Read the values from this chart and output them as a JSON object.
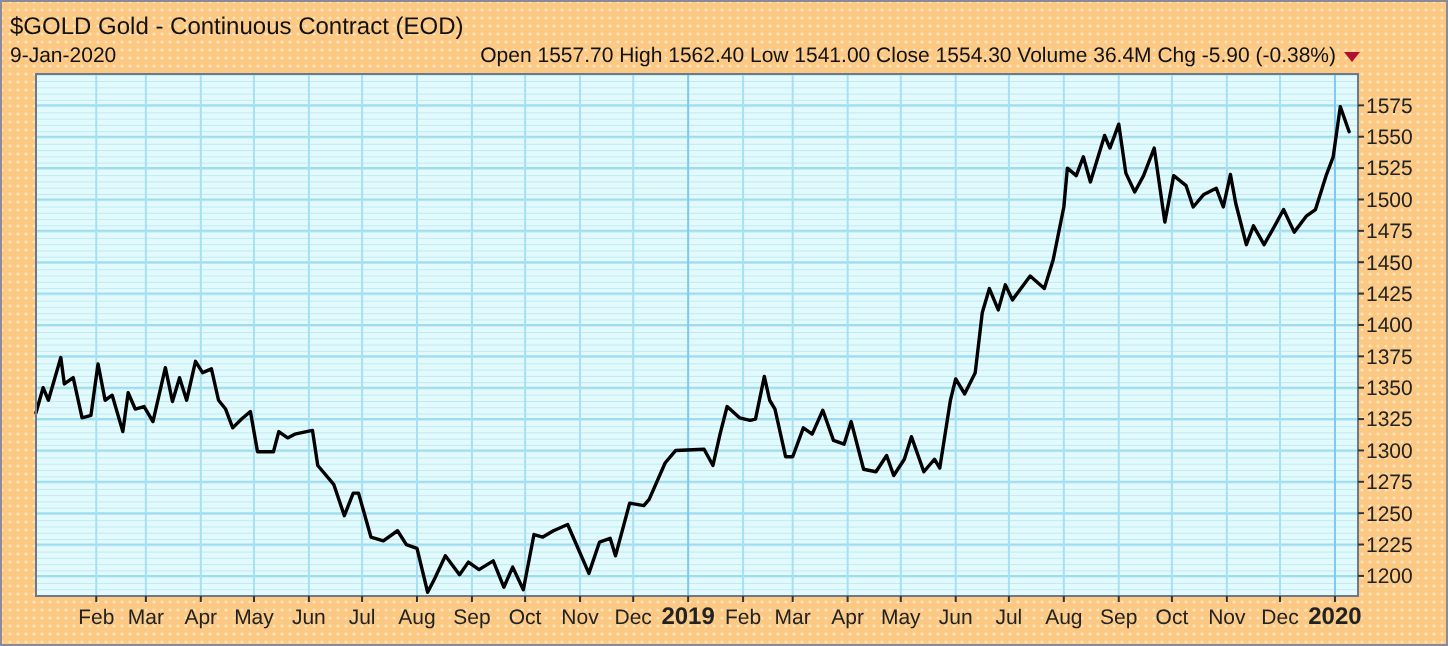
{
  "chart_data": {
    "type": "line",
    "title": "$GOLD Gold - Continuous Contract (EOD)",
    "subtitle": "9-Jan-2020",
    "annotations": [
      "Open 1557.70 High 1562.40 Low 1541.00 Close 1554.30 Volume 36.4M Chg -5.90 (-0.38%)"
    ],
    "x": [
      "2017-12-29",
      "2018-01-02",
      "2018-01-05",
      "2018-01-12",
      "2018-01-14",
      "2018-01-19",
      "2018-01-24",
      "2018-01-29",
      "2018-02-02",
      "2018-02-06",
      "2018-02-10",
      "2018-02-16",
      "2018-02-19",
      "2018-02-23",
      "2018-02-28",
      "2018-03-05",
      "2018-03-12",
      "2018-03-16",
      "2018-03-20",
      "2018-03-24",
      "2018-03-29",
      "2018-04-02",
      "2018-04-07",
      "2018-04-11",
      "2018-04-15",
      "2018-04-19",
      "2018-04-24",
      "2018-04-29",
      "2018-05-03",
      "2018-05-12",
      "2018-05-15",
      "2018-05-20",
      "2018-05-24",
      "2018-06-03",
      "2018-06-06",
      "2018-06-15",
      "2018-06-21",
      "2018-06-26",
      "2018-06-29",
      "2018-07-06",
      "2018-07-13",
      "2018-07-21",
      "2018-07-26",
      "2018-08-01",
      "2018-08-07",
      "2018-08-11",
      "2018-08-17",
      "2018-08-25",
      "2018-08-30",
      "2018-09-05",
      "2018-09-13",
      "2018-09-19",
      "2018-09-24",
      "2018-09-30",
      "2018-10-06",
      "2018-10-11",
      "2018-10-17",
      "2018-10-25",
      "2018-10-29",
      "2018-11-06",
      "2018-11-12",
      "2018-11-18",
      "2018-11-21",
      "2018-11-29",
      "2018-12-07",
      "2018-12-10",
      "2018-12-19",
      "2018-12-25",
      "2019-01-10",
      "2019-01-15",
      "2019-01-19",
      "2019-01-23",
      "2019-01-30",
      "2019-02-05",
      "2019-02-08",
      "2019-02-13",
      "2019-02-16",
      "2019-02-19",
      "2019-02-25",
      "2019-03-01",
      "2019-03-07",
      "2019-03-12",
      "2019-03-18",
      "2019-03-24",
      "2019-03-30",
      "2019-04-03",
      "2019-04-10",
      "2019-04-17",
      "2019-04-23",
      "2019-04-27",
      "2019-05-03",
      "2019-05-07",
      "2019-05-14",
      "2019-05-20",
      "2019-05-23",
      "2019-05-29",
      "2019-06-01",
      "2019-06-06",
      "2019-06-12",
      "2019-06-16",
      "2019-06-20",
      "2019-06-25",
      "2019-06-29",
      "2019-07-03",
      "2019-07-13",
      "2019-07-21",
      "2019-07-26",
      "2019-08-01",
      "2019-08-03",
      "2019-08-08",
      "2019-08-12",
      "2019-08-16",
      "2019-08-24",
      "2019-08-27",
      "2019-09-01",
      "2019-09-05",
      "2019-09-10",
      "2019-09-15",
      "2019-09-21",
      "2019-09-27",
      "2019-10-02",
      "2019-10-09",
      "2019-10-13",
      "2019-10-19",
      "2019-10-26",
      "2019-10-30",
      "2019-11-03",
      "2019-11-06",
      "2019-11-12",
      "2019-11-16",
      "2019-11-22",
      "2019-11-28",
      "2019-12-03",
      "2019-12-09",
      "2019-12-16",
      "2019-12-21",
      "2019-12-27",
      "2019-12-31",
      "2020-01-04",
      "2020-01-09"
    ],
    "series": [
      {
        "color": "#000000",
        "values": [
          1330,
          1350,
          1340,
          1374,
          1353,
          1358,
          1326,
          1328,
          1369,
          1340,
          1344,
          1315,
          1346,
          1333,
          1335,
          1323,
          1366,
          1339,
          1358,
          1340,
          1371,
          1362,
          1365,
          1340,
          1333,
          1318,
          1325,
          1331,
          1299,
          1299,
          1315,
          1310,
          1313,
          1316,
          1288,
          1273,
          1248,
          1266,
          1266,
          1231,
          1228,
          1236,
          1225,
          1222,
          1187,
          1198,
          1216,
          1201,
          1211,
          1205,
          1212,
          1191,
          1207,
          1189,
          1233,
          1231,
          1236,
          1241,
          1228,
          1202,
          1227,
          1230,
          1216,
          1258,
          1256,
          1261,
          1290,
          1300,
          1301,
          1288,
          1313,
          1335,
          1326,
          1324,
          1325,
          1359,
          1340,
          1333,
          1295,
          1295,
          1318,
          1313,
          1332,
          1308,
          1305,
          1323,
          1285,
          1283,
          1296,
          1280,
          1293,
          1311,
          1283,
          1293,
          1286,
          1340,
          1357,
          1345,
          1362,
          1410,
          1429,
          1412,
          1432,
          1420,
          1439,
          1429,
          1452,
          1494,
          1525,
          1519,
          1534,
          1514,
          1551,
          1541,
          1560,
          1521,
          1506,
          1519,
          1541,
          1482,
          1519,
          1511,
          1494,
          1504,
          1509,
          1494,
          1520,
          1497,
          1464,
          1479,
          1464,
          1479,
          1492,
          1474,
          1487,
          1492,
          1519,
          1534,
          1574,
          1554
        ]
      }
    ],
    "xlim": [
      "2017-12-29",
      "2020-01-14"
    ],
    "xticks": [
      {
        "value": "2018-02-01",
        "label": "Feb"
      },
      {
        "value": "2018-03-01",
        "label": "Mar"
      },
      {
        "value": "2018-04-01",
        "label": "Apr"
      },
      {
        "value": "2018-05-01",
        "label": "May"
      },
      {
        "value": "2018-06-01",
        "label": "Jun"
      },
      {
        "value": "2018-07-01",
        "label": "Jul"
      },
      {
        "value": "2018-08-01",
        "label": "Aug"
      },
      {
        "value": "2018-09-01",
        "label": "Sep"
      },
      {
        "value": "2018-10-01",
        "label": "Oct"
      },
      {
        "value": "2018-11-01",
        "label": "Nov"
      },
      {
        "value": "2018-12-01",
        "label": "Dec"
      },
      {
        "value": "2019-01-01",
        "label": "2019"
      },
      {
        "value": "2019-02-01",
        "label": "Feb"
      },
      {
        "value": "2019-03-01",
        "label": "Mar"
      },
      {
        "value": "2019-04-01",
        "label": "Apr"
      },
      {
        "value": "2019-05-01",
        "label": "May"
      },
      {
        "value": "2019-06-01",
        "label": "Jun"
      },
      {
        "value": "2019-07-01",
        "label": "Jul"
      },
      {
        "value": "2019-08-01",
        "label": "Aug"
      },
      {
        "value": "2019-09-01",
        "label": "Sep"
      },
      {
        "value": "2019-10-01",
        "label": "Oct"
      },
      {
        "value": "2019-11-01",
        "label": "Nov"
      },
      {
        "value": "2019-12-01",
        "label": "Dec"
      },
      {
        "value": "2020-01-01",
        "label": "2020"
      }
    ],
    "ylim": [
      1184,
      1600
    ],
    "yticks": [
      1200,
      1225,
      1250,
      1275,
      1300,
      1325,
      1350,
      1375,
      1400,
      1425,
      1450,
      1475,
      1500,
      1525,
      1550,
      1575
    ],
    "grid": true,
    "marker": "none",
    "line_style": "solid"
  }
}
